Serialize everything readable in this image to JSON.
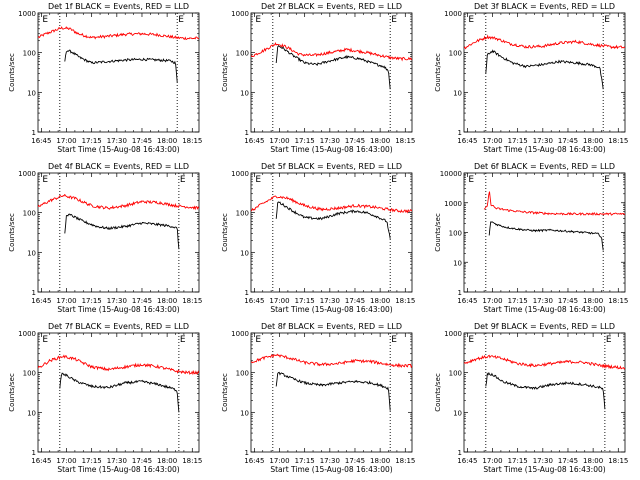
{
  "figure": {
    "background": "#ffffff",
    "axis_color": "#000000",
    "events_color": "#000000",
    "lld_color": "#ff0000"
  },
  "chart_data": [
    {
      "type": "line",
      "title": "Det 1f BLACK = Events, RED = LLD",
      "xlabel": "Start Time (15-Aug-08 16:43:00)",
      "ylabel": "Counts/sec",
      "xlim": [
        "16:43",
        "18:19"
      ],
      "ylim": [
        1,
        1000
      ],
      "yscale": "log",
      "xticks": [
        "16:45",
        "17:00",
        "17:15",
        "17:30",
        "17:45",
        "18:00",
        "18:15"
      ],
      "yticks": [
        "1",
        "10",
        "100",
        "1000"
      ],
      "vlines": [
        "16:56",
        "18:06"
      ],
      "markers": [
        {
          "label": "E",
          "x": "16:45"
        },
        {
          "label": "E",
          "x": "18:06"
        }
      ],
      "series": [
        {
          "name": "LLD",
          "color": "#ff0000",
          "x": [
            "16:43",
            "16:47",
            "16:52",
            "16:57",
            "17:02",
            "17:07",
            "17:15",
            "17:25",
            "17:35",
            "17:45",
            "17:55",
            "18:05",
            "18:10",
            "18:19"
          ],
          "values": [
            240,
            290,
            350,
            420,
            400,
            300,
            240,
            260,
            290,
            300,
            280,
            240,
            230,
            230
          ]
        },
        {
          "name": "Events",
          "color": "#000000",
          "x": [
            "16:59",
            "17:00",
            "17:03",
            "17:08",
            "17:15",
            "17:25",
            "17:35",
            "17:45",
            "17:55",
            "18:02",
            "18:05",
            "18:06"
          ],
          "values": [
            60,
            115,
            105,
            75,
            55,
            60,
            65,
            68,
            65,
            62,
            55,
            18
          ]
        }
      ]
    },
    {
      "type": "line",
      "title": "Det 2f BLACK = Events, RED = LLD",
      "xlabel": "Start Time (15-Aug-08 16:43:00)",
      "ylabel": "Counts/sec",
      "xlim": [
        "16:43",
        "18:19"
      ],
      "ylim": [
        1,
        1000
      ],
      "yscale": "log",
      "xticks": [
        "16:45",
        "17:00",
        "17:15",
        "17:30",
        "17:45",
        "18:00",
        "18:15"
      ],
      "yticks": [
        "1",
        "10",
        "100",
        "1000"
      ],
      "vlines": [
        "16:56",
        "18:06"
      ],
      "markers": [
        {
          "label": "E",
          "x": "16:45"
        },
        {
          "label": "E",
          "x": "18:06"
        }
      ],
      "series": [
        {
          "name": "LLD",
          "color": "#ff0000",
          "x": [
            "16:43",
            "16:50",
            "16:58",
            "17:04",
            "17:12",
            "17:20",
            "17:30",
            "17:40",
            "17:50",
            "18:00",
            "18:06",
            "18:12",
            "18:19"
          ],
          "values": [
            80,
            110,
            170,
            140,
            90,
            85,
            100,
            120,
            105,
            85,
            75,
            70,
            70
          ]
        },
        {
          "name": "Events",
          "color": "#000000",
          "x": [
            "16:58",
            "16:59",
            "17:02",
            "17:08",
            "17:15",
            "17:22",
            "17:30",
            "17:40",
            "17:48",
            "17:55",
            "18:02",
            "18:05",
            "18:06"
          ],
          "values": [
            55,
            150,
            130,
            85,
            55,
            50,
            62,
            78,
            70,
            55,
            45,
            35,
            12
          ]
        }
      ]
    },
    {
      "type": "line",
      "title": "Det 3f BLACK = Events, RED = LLD",
      "xlabel": "Start Time (15-Aug-08 16:43:00)",
      "ylabel": "Counts/sec",
      "xlim": [
        "16:43",
        "18:19"
      ],
      "ylim": [
        1,
        1000
      ],
      "yscale": "log",
      "xticks": [
        "16:45",
        "17:00",
        "17:15",
        "17:30",
        "17:45",
        "18:00",
        "18:15"
      ],
      "yticks": [
        "1",
        "10",
        "100",
        "1000"
      ],
      "vlines": [
        "16:56",
        "18:06"
      ],
      "markers": [
        {
          "label": "E",
          "x": "16:45"
        },
        {
          "label": "E",
          "x": "18:06"
        }
      ],
      "series": [
        {
          "name": "LLD",
          "color": "#ff0000",
          "x": [
            "16:43",
            "16:50",
            "16:57",
            "17:02",
            "17:10",
            "17:20",
            "17:30",
            "17:40",
            "17:50",
            "18:00",
            "18:10",
            "18:19"
          ],
          "values": [
            130,
            190,
            250,
            230,
            170,
            140,
            145,
            175,
            190,
            160,
            140,
            135
          ]
        },
        {
          "name": "Events",
          "color": "#000000",
          "x": [
            "16:56",
            "16:57",
            "17:00",
            "17:05",
            "17:12",
            "17:20",
            "17:30",
            "17:40",
            "17:50",
            "17:58",
            "18:04",
            "18:06"
          ],
          "values": [
            30,
            90,
            110,
            80,
            55,
            45,
            50,
            60,
            55,
            50,
            42,
            12
          ]
        }
      ]
    },
    {
      "type": "line",
      "title": "Det 4f BLACK = Events, RED = LLD",
      "xlabel": "Start Time (15-Aug-08 16:43:00)",
      "ylabel": "Counts/sec",
      "xlim": [
        "16:43",
        "18:19"
      ],
      "ylim": [
        1,
        1000
      ],
      "yscale": "log",
      "xticks": [
        "16:45",
        "17:00",
        "17:15",
        "17:30",
        "17:45",
        "18:00",
        "18:15"
      ],
      "yticks": [
        "1",
        "10",
        "100",
        "1000"
      ],
      "vlines": [
        "16:56",
        "18:07"
      ],
      "markers": [
        {
          "label": "E",
          "x": "16:45"
        },
        {
          "label": "E",
          "x": "18:07"
        }
      ],
      "series": [
        {
          "name": "LLD",
          "color": "#ff0000",
          "x": [
            "16:43",
            "16:50",
            "16:58",
            "17:05",
            "17:15",
            "17:25",
            "17:35",
            "17:45",
            "17:55",
            "18:05",
            "18:12",
            "18:19"
          ],
          "values": [
            140,
            200,
            270,
            230,
            150,
            130,
            150,
            190,
            180,
            150,
            140,
            130
          ]
        },
        {
          "name": "Events",
          "color": "#000000",
          "x": [
            "16:59",
            "17:00",
            "17:03",
            "17:10",
            "17:18",
            "17:25",
            "17:35",
            "17:45",
            "17:55",
            "18:03",
            "18:06",
            "18:07"
          ],
          "values": [
            30,
            90,
            85,
            60,
            45,
            40,
            45,
            55,
            50,
            45,
            40,
            12
          ]
        }
      ]
    },
    {
      "type": "line",
      "title": "Det 5f BLACK = Events, RED = LLD",
      "xlabel": "Start Time (15-Aug-08 16:43:00)",
      "ylabel": "Counts/sec",
      "xlim": [
        "16:43",
        "18:19"
      ],
      "ylim": [
        1,
        1000
      ],
      "yscale": "log",
      "xticks": [
        "16:45",
        "17:00",
        "17:15",
        "17:30",
        "17:45",
        "18:00",
        "18:15"
      ],
      "yticks": [
        "1",
        "10",
        "100",
        "1000"
      ],
      "vlines": [
        "16:56",
        "18:06"
      ],
      "markers": [
        {
          "label": "E",
          "x": "16:45"
        },
        {
          "label": "E",
          "x": "18:06"
        }
      ],
      "series": [
        {
          "name": "LLD",
          "color": "#ff0000",
          "x": [
            "16:43",
            "16:50",
            "16:58",
            "17:05",
            "17:15",
            "17:25",
            "17:35",
            "17:45",
            "17:55",
            "18:05",
            "18:12",
            "18:19"
          ],
          "values": [
            110,
            170,
            260,
            230,
            150,
            120,
            130,
            150,
            140,
            120,
            110,
            110
          ]
        },
        {
          "name": "Events",
          "color": "#000000",
          "x": [
            "16:58",
            "16:59",
            "17:02",
            "17:08",
            "17:15",
            "17:25",
            "17:35",
            "17:45",
            "17:52",
            "17:58",
            "18:04",
            "18:06"
          ],
          "values": [
            70,
            190,
            160,
            110,
            75,
            70,
            95,
            110,
            100,
            80,
            60,
            22
          ]
        }
      ]
    },
    {
      "type": "line",
      "title": "Det 6f BLACK = Events, RED = LLD",
      "xlabel": "Start Time (15-Aug-08 16:43:00)",
      "ylabel": "Counts/sec",
      "xlim": [
        "16:43",
        "18:19"
      ],
      "ylim": [
        1,
        10000
      ],
      "yscale": "log",
      "xticks": [
        "16:45",
        "17:00",
        "17:15",
        "17:30",
        "17:45",
        "18:00",
        "18:15"
      ],
      "yticks": [
        "1",
        "10",
        "100",
        "1000",
        "10000"
      ],
      "vlines": [
        "16:56",
        "18:06"
      ],
      "markers": [
        {
          "label": "E",
          "x": "16:45"
        },
        {
          "label": "E",
          "x": "18:06"
        }
      ],
      "series": [
        {
          "name": "LLD",
          "color": "#ff0000",
          "x": [
            "16:55",
            "16:57",
            "16:58",
            "16:59",
            "17:02",
            "17:10",
            "17:20",
            "17:35",
            "17:50",
            "18:05",
            "18:19"
          ],
          "values": [
            600,
            750,
            2700,
            900,
            650,
            550,
            480,
            430,
            420,
            420,
            420
          ]
        },
        {
          "name": "Events",
          "color": "#000000",
          "x": [
            "16:58",
            "16:59",
            "17:02",
            "17:08",
            "17:15",
            "17:25",
            "17:35",
            "17:45",
            "17:55",
            "18:03",
            "18:05",
            "18:06"
          ],
          "values": [
            80,
            240,
            190,
            150,
            130,
            115,
            120,
            110,
            100,
            90,
            70,
            25
          ]
        }
      ]
    },
    {
      "type": "line",
      "title": "Det 7f BLACK = Events, RED = LLD",
      "xlabel": "Start Time (15-Aug-08 16:43:00)",
      "ylabel": "Counts/sec",
      "xlim": [
        "16:43",
        "18:19"
      ],
      "ylim": [
        1,
        1000
      ],
      "yscale": "log",
      "xticks": [
        "16:45",
        "17:00",
        "17:15",
        "17:30",
        "17:45",
        "18:00",
        "18:15"
      ],
      "yticks": [
        "1",
        "10",
        "100",
        "1000"
      ],
      "vlines": [
        "16:56",
        "18:07"
      ],
      "markers": [
        {
          "label": "E",
          "x": "16:45"
        },
        {
          "label": "E",
          "x": "18:07"
        }
      ],
      "series": [
        {
          "name": "LLD",
          "color": "#ff0000",
          "x": [
            "16:43",
            "16:50",
            "16:58",
            "17:05",
            "17:15",
            "17:25",
            "17:35",
            "17:45",
            "17:55",
            "18:05",
            "18:12",
            "18:19"
          ],
          "values": [
            130,
            200,
            260,
            220,
            140,
            120,
            140,
            160,
            140,
            110,
            100,
            100
          ]
        },
        {
          "name": "Events",
          "color": "#000000",
          "x": [
            "16:56",
            "16:57",
            "17:00",
            "17:06",
            "17:15",
            "17:25",
            "17:35",
            "17:45",
            "17:55",
            "18:03",
            "18:06",
            "18:07"
          ],
          "values": [
            40,
            95,
            85,
            60,
            45,
            42,
            55,
            60,
            50,
            40,
            35,
            10
          ]
        }
      ]
    },
    {
      "type": "line",
      "title": "Det 8f BLACK = Events, RED = LLD",
      "xlabel": "Start Time (15-Aug-08 16:43:00)",
      "ylabel": "Counts/sec",
      "xlim": [
        "16:43",
        "18:19"
      ],
      "ylim": [
        1,
        1000
      ],
      "yscale": "log",
      "xticks": [
        "16:45",
        "17:00",
        "17:15",
        "17:30",
        "17:45",
        "18:00",
        "18:15"
      ],
      "yticks": [
        "1",
        "10",
        "100",
        "1000"
      ],
      "vlines": [
        "16:56",
        "18:06"
      ],
      "markers": [
        {
          "label": "E",
          "x": "16:45"
        },
        {
          "label": "E",
          "x": "18:06"
        }
      ],
      "series": [
        {
          "name": "LLD",
          "color": "#ff0000",
          "x": [
            "16:43",
            "16:50",
            "16:58",
            "17:05",
            "17:15",
            "17:25",
            "17:35",
            "17:45",
            "17:55",
            "18:05",
            "18:12",
            "18:19"
          ],
          "values": [
            180,
            230,
            280,
            240,
            180,
            160,
            170,
            200,
            190,
            160,
            150,
            150
          ]
        },
        {
          "name": "Events",
          "color": "#000000",
          "x": [
            "16:58",
            "16:59",
            "17:02",
            "17:08",
            "17:15",
            "17:25",
            "17:35",
            "17:45",
            "17:55",
            "18:02",
            "18:05",
            "18:06"
          ],
          "values": [
            45,
            100,
            90,
            70,
            55,
            48,
            55,
            60,
            55,
            45,
            40,
            11
          ]
        }
      ]
    },
    {
      "type": "line",
      "title": "Det 9f BLACK = Events, RED = LLD",
      "xlabel": "Start Time (15-Aug-08 16:43:00)",
      "ylabel": "Counts/sec",
      "xlim": [
        "16:43",
        "18:19"
      ],
      "ylim": [
        1,
        1000
      ],
      "yscale": "log",
      "xticks": [
        "16:45",
        "17:00",
        "17:15",
        "17:30",
        "17:45",
        "18:00",
        "18:15"
      ],
      "yticks": [
        "1",
        "10",
        "100",
        "1000"
      ],
      "vlines": [
        "16:56",
        "18:07"
      ],
      "markers": [
        {
          "label": "E",
          "x": "16:45"
        },
        {
          "label": "E",
          "x": "18:07"
        }
      ],
      "series": [
        {
          "name": "LLD",
          "color": "#ff0000",
          "x": [
            "16:43",
            "16:50",
            "16:58",
            "17:05",
            "17:15",
            "17:25",
            "17:35",
            "17:45",
            "17:55",
            "18:05",
            "18:12",
            "18:19"
          ],
          "values": [
            170,
            220,
            260,
            230,
            170,
            150,
            170,
            190,
            180,
            150,
            140,
            130
          ]
        },
        {
          "name": "Events",
          "color": "#000000",
          "x": [
            "16:56",
            "16:57",
            "17:00",
            "17:06",
            "17:15",
            "17:25",
            "17:35",
            "17:45",
            "17:55",
            "18:04",
            "18:06",
            "18:07"
          ],
          "values": [
            45,
            95,
            90,
            60,
            45,
            40,
            50,
            55,
            50,
            42,
            38,
            12
          ]
        }
      ]
    }
  ]
}
